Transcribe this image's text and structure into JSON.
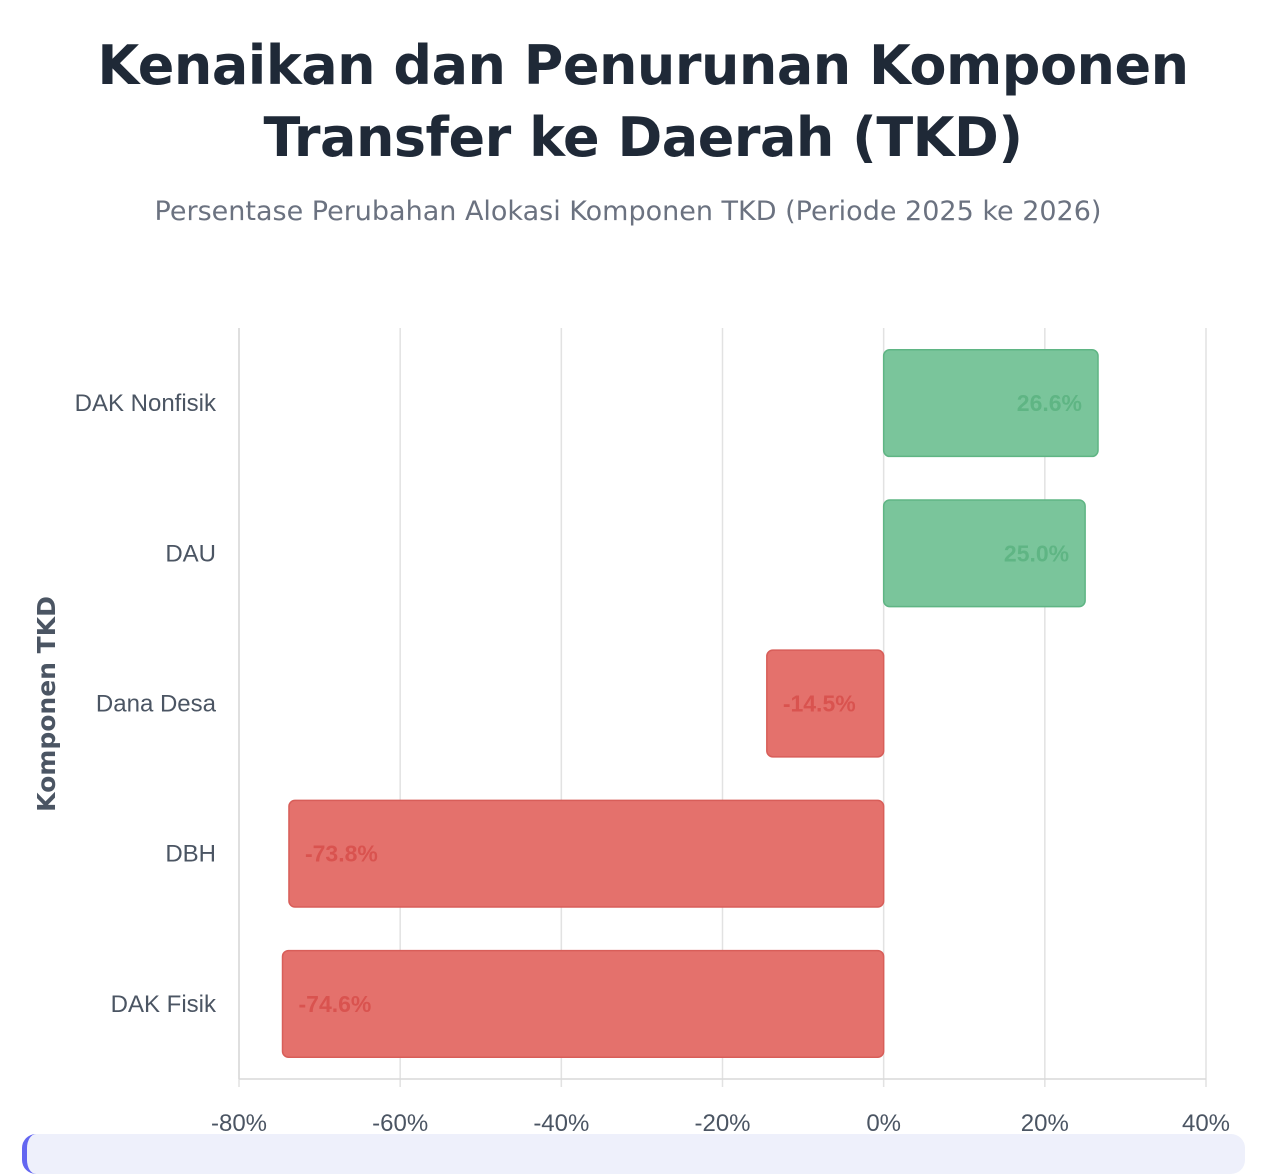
{
  "chart_data": {
    "type": "bar",
    "orientation": "horizontal",
    "title_line1": "Kenaikan dan Penurunan Komponen",
    "title_line2": "Transfer ke Daerah (TKD)",
    "subtitle": "Persentase Perubahan Alokasi Komponen TKD (Periode 2025 ke 2026)",
    "ylabel": "Komponen TKD",
    "xlabel": "",
    "categories": [
      "DAK Nonfisik",
      "DAU",
      "Dana Desa",
      "DBH",
      "DAK Fisik"
    ],
    "values": [
      26.6,
      25.0,
      -14.5,
      -73.8,
      -74.6
    ],
    "data_labels": [
      "26.6%",
      "25.0%",
      "-14.5%",
      "-73.8%",
      "-74.6%"
    ],
    "xlim": [
      -80,
      40
    ],
    "x_ticks": [
      -80,
      -60,
      -40,
      -20,
      0,
      20,
      40
    ],
    "x_tick_labels": [
      "-80%",
      "-60%",
      "-40%",
      "-20%",
      "0%",
      "20%",
      "40%"
    ],
    "grid": true,
    "legend": "none",
    "colors": {
      "positive_fill": "#7ac59b",
      "positive_stroke": "#5fb584",
      "positive_label": "#5fb584",
      "negative_fill": "#e4716c",
      "negative_stroke": "#d85e59",
      "negative_label": "#d9534f"
    }
  }
}
